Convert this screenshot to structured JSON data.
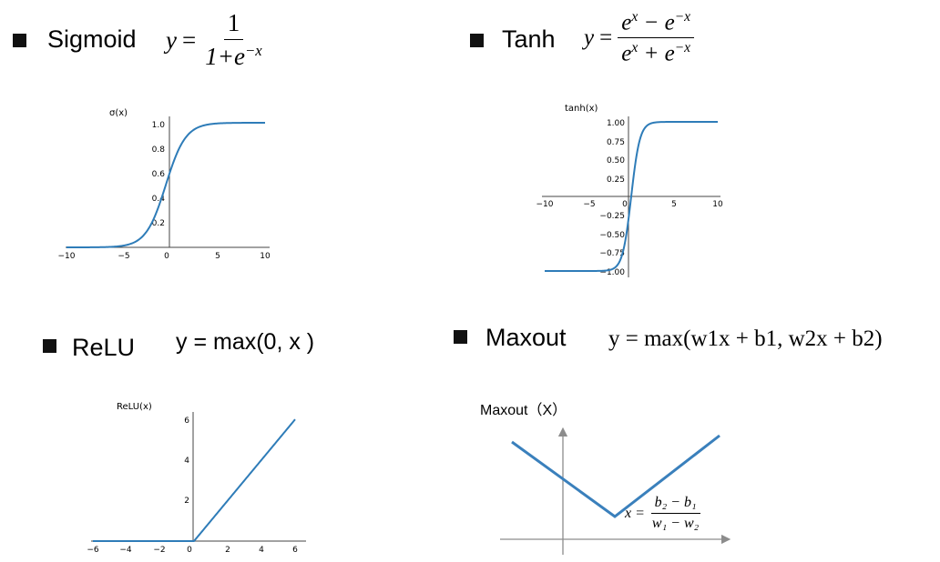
{
  "colors": {
    "curve": "#2e7cb8",
    "axis": "#444444",
    "maxout_axis": "#8c8c8c"
  },
  "panels": {
    "sigmoid": {
      "name": "Sigmoid",
      "formula": {
        "lhs": "y",
        "eq": "=",
        "num": "1",
        "den_a": "1+e",
        "den_sup": "−x"
      },
      "chart_data": {
        "type": "line",
        "ylabel": "σ(x)",
        "xlim": [
          -10,
          10
        ],
        "ylim": [
          0,
          1
        ],
        "xticks": [
          "−10",
          "−5",
          "0",
          "5",
          "10"
        ],
        "yticks": [
          "0.2",
          "0.4",
          "0.6",
          "0.8",
          "1.0"
        ],
        "series": [
          {
            "function": "1/(1+exp(-x))",
            "x_range": [
              -10,
              10
            ]
          }
        ]
      }
    },
    "tanh": {
      "name": "Tanh",
      "formula": {
        "lhs": "y",
        "eq": "=",
        "num_a": "e",
        "num_sup1": "x",
        "num_mid": " − e",
        "num_sup2": "−x",
        "den_a": "e",
        "den_sup1": "x",
        "den_mid": " + e",
        "den_sup2": "−x"
      },
      "chart_data": {
        "type": "line",
        "ylabel": "tanh(x)",
        "xlim": [
          -10,
          10
        ],
        "ylim": [
          -1,
          1
        ],
        "xticks": [
          "−10",
          "−5",
          "0",
          "5",
          "10"
        ],
        "yticks": [
          "1.00",
          "0.75",
          "0.50",
          "0.25",
          "−0.25",
          "−0.50",
          "−0.75",
          "−1.00"
        ],
        "series": [
          {
            "function": "tanh(x)",
            "x_range": [
              -10,
              10
            ]
          }
        ]
      }
    },
    "relu": {
      "name": "ReLU",
      "formula": "y = max(0, x )",
      "chart_data": {
        "type": "line",
        "ylabel": "ReLU(x)",
        "xlim": [
          -6,
          6
        ],
        "ylim": [
          0,
          6
        ],
        "xticks": [
          "−6",
          "−4",
          "−2",
          "0",
          "2",
          "4",
          "6"
        ],
        "yticks": [
          "2",
          "4",
          "6"
        ],
        "series": [
          {
            "function": "max(0,x)",
            "x_range": [
              -6,
              6
            ]
          }
        ]
      }
    },
    "maxout": {
      "name": "Maxout",
      "formula": "y = max(w1x + b1, w2x + b2)",
      "label": "Maxout（X）",
      "annotation": {
        "lhs": "x =",
        "num": "b₂ − b₁",
        "den": "w₁ − w₂"
      }
    }
  }
}
